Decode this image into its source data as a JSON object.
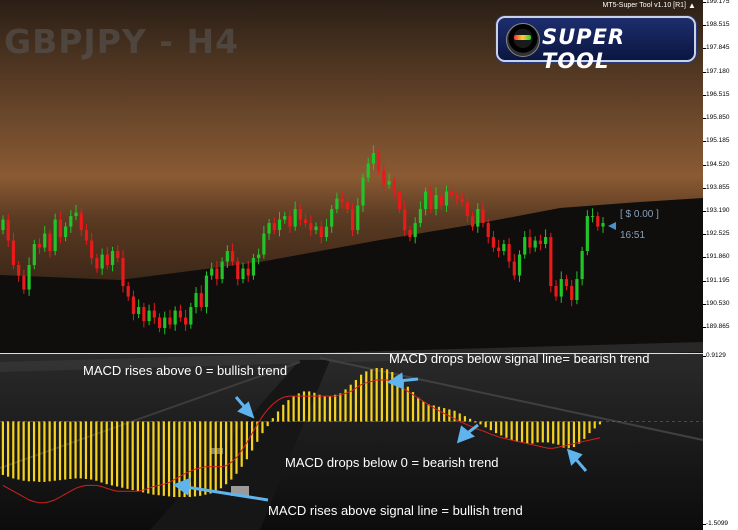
{
  "header": {
    "symbol": "GBPJPY - H4",
    "tool_title": "MT5-Super Tool v1.10 [R1]",
    "logo_text": "SUPER TOOL",
    "position_label": "[ $ 0.00 ]",
    "timer": "16:51"
  },
  "annotations": {
    "macd_above_zero": "MACD rises above 0 = bullish trend",
    "macd_below_signal": "MACD drops below signal line= bearish trend",
    "macd_below_zero": "MACD drops below 0 = bearish trend",
    "macd_above_signal": "MACD rises above signal line = bullish trend"
  },
  "colors": {
    "bull": "#22c42a",
    "bear": "#e81a1a",
    "histogram": "#f5d21c",
    "signal": "#d42020",
    "arrow": "#5fb4ee"
  },
  "chart_data": [
    {
      "type": "candlestick",
      "title": "GBPJPY - H4",
      "ylim": [
        189.515,
        199.175
      ],
      "y_ticks": [
        "199.175",
        "198.515",
        "197.845",
        "197.180",
        "196.515",
        "195.850",
        "195.185",
        "194.520",
        "193.855",
        "193.190",
        "192.525",
        "191.860",
        "191.195",
        "190.530",
        "189.865"
      ],
      "close": [
        192.9,
        192.3,
        191.6,
        191.3,
        190.9,
        191.6,
        192.2,
        192.1,
        192.5,
        192.0,
        192.9,
        192.4,
        192.7,
        193.0,
        193.1,
        192.6,
        192.3,
        191.8,
        191.5,
        191.9,
        191.6,
        192.0,
        191.8,
        191.0,
        190.7,
        190.2,
        190.4,
        190.0,
        190.3,
        190.1,
        189.8,
        190.1,
        189.9,
        190.3,
        190.1,
        189.9,
        190.4,
        190.8,
        190.4,
        191.3,
        191.5,
        191.2,
        191.7,
        192.0,
        191.7,
        191.2,
        191.5,
        191.3,
        191.8,
        191.9,
        192.5,
        192.8,
        192.6,
        192.9,
        193.0,
        192.7,
        193.2,
        192.9,
        192.8,
        192.6,
        192.7,
        192.4,
        192.7,
        193.2,
        193.5,
        193.4,
        193.2,
        192.6,
        193.3,
        194.1,
        194.5,
        194.8,
        194.3,
        193.9,
        194.0,
        193.7,
        193.2,
        192.6,
        192.4,
        192.8,
        193.2,
        193.7,
        193.2,
        193.6,
        193.3,
        193.7,
        193.6,
        193.5,
        193.4,
        193.0,
        192.7,
        193.2,
        192.8,
        192.4,
        192.1,
        192.0,
        192.2,
        191.7,
        191.3,
        191.9,
        192.4,
        192.1,
        192.3,
        192.2,
        192.4,
        191.0,
        190.7,
        191.2,
        191.0,
        190.6,
        191.2,
        192.0,
        193.0,
        193.0,
        192.7,
        192.8
      ],
      "open": [
        192.6,
        192.9,
        192.3,
        191.6,
        191.3,
        190.9,
        191.6,
        192.2,
        192.1,
        192.5,
        192.0,
        192.9,
        192.4,
        192.7,
        193.0,
        193.1,
        192.6,
        192.3,
        191.8,
        191.5,
        191.9,
        191.6,
        192.0,
        191.8,
        191.0,
        190.7,
        190.2,
        190.4,
        190.0,
        190.3,
        190.1,
        189.8,
        190.1,
        189.9,
        190.3,
        190.1,
        189.9,
        190.4,
        190.8,
        190.4,
        191.3,
        191.5,
        191.2,
        191.7,
        192.0,
        191.7,
        191.2,
        191.5,
        191.3,
        191.8,
        191.9,
        192.5,
        192.8,
        192.6,
        192.9,
        193.0,
        192.7,
        193.2,
        192.9,
        192.8,
        192.6,
        192.7,
        192.4,
        192.7,
        193.2,
        193.5,
        193.4,
        193.2,
        192.6,
        193.3,
        194.1,
        194.5,
        194.8,
        194.3,
        193.9,
        194.0,
        193.7,
        193.2,
        192.6,
        192.4,
        192.8,
        193.2,
        193.7,
        193.2,
        193.6,
        193.3,
        193.7,
        193.6,
        193.5,
        193.4,
        193.0,
        192.7,
        193.2,
        192.8,
        192.4,
        192.1,
        192.0,
        192.2,
        191.7,
        191.3,
        191.9,
        192.4,
        192.1,
        192.3,
        192.2,
        192.4,
        191.0,
        190.7,
        191.2,
        191.0,
        190.6,
        191.2,
        192.0,
        193.0,
        193.0,
        192.7
      ]
    },
    {
      "type": "bar",
      "title": "MACD",
      "ylim": [
        -1.5099,
        0.9129
      ],
      "y_ticks": [
        "0.9129",
        "-1.5099"
      ],
      "histogram": [
        -0.92,
        -0.95,
        -0.98,
        -1.0,
        -1.02,
        -1.03,
        -1.03,
        -1.04,
        -1.04,
        -1.03,
        -1.02,
        -1.01,
        -1.0,
        -0.99,
        -0.98,
        -0.98,
        -0.99,
        -1.0,
        -1.02,
        -1.05,
        -1.08,
        -1.1,
        -1.12,
        -1.14,
        -1.16,
        -1.18,
        -1.2,
        -1.22,
        -1.24,
        -1.26,
        -1.27,
        -1.28,
        -1.29,
        -1.3,
        -1.3,
        -1.3,
        -1.3,
        -1.29,
        -1.28,
        -1.26,
        -1.24,
        -1.2,
        -1.15,
        -1.08,
        -1.0,
        -0.9,
        -0.78,
        -0.65,
        -0.5,
        -0.35,
        -0.2,
        -0.08,
        0.05,
        0.15,
        0.25,
        0.32,
        0.38,
        0.42,
        0.45,
        0.45,
        0.43,
        0.4,
        0.38,
        0.38,
        0.4,
        0.42,
        0.48,
        0.55,
        0.62,
        0.7,
        0.75,
        0.78,
        0.8,
        0.8,
        0.78,
        0.74,
        0.68,
        0.6,
        0.52,
        0.44,
        0.36,
        0.3,
        0.26,
        0.24,
        0.22,
        0.2,
        0.18,
        0.16,
        0.12,
        0.08,
        0.04,
        0.0,
        -0.05,
        -0.1,
        -0.15,
        -0.2,
        -0.24,
        -0.28,
        -0.32,
        -0.35,
        -0.36,
        -0.38,
        -0.38,
        -0.36,
        -0.36,
        -0.36,
        -0.38,
        -0.4,
        -0.45,
        -0.46,
        -0.44,
        -0.38,
        -0.3,
        -0.2,
        -0.12,
        -0.05
      ],
      "signal": [
        -1.1,
        -1.15,
        -1.2,
        -1.25,
        -1.3,
        -1.35,
        -1.38,
        -1.4,
        -1.4,
        -1.38,
        -1.35,
        -1.3,
        -1.25,
        -1.2,
        -1.15,
        -1.12,
        -1.1,
        -1.1,
        -1.1,
        -1.12,
        -1.15,
        -1.18,
        -1.2,
        -1.2,
        -1.2,
        -1.2,
        -1.2,
        -1.18,
        -1.15,
        -1.12,
        -1.1,
        -1.08,
        -1.05,
        -1.0,
        -0.95,
        -0.9,
        -0.86,
        -0.82,
        -0.8,
        -0.78,
        -0.78,
        -0.78,
        -0.78,
        -0.76,
        -0.7,
        -0.62,
        -0.5,
        -0.36,
        -0.2,
        -0.05,
        0.08,
        0.18,
        0.26,
        0.32,
        0.36,
        0.38,
        0.38,
        0.38,
        0.38,
        0.38,
        0.38,
        0.38,
        0.38,
        0.38,
        0.38,
        0.4,
        0.42,
        0.45,
        0.5,
        0.55,
        0.58,
        0.6,
        0.62,
        0.62,
        0.62,
        0.6,
        0.56,
        0.5,
        0.45,
        0.4,
        0.35,
        0.3,
        0.25,
        0.2,
        0.16,
        0.12,
        0.08,
        0.04,
        0.0,
        -0.04,
        -0.08,
        -0.12,
        -0.15,
        -0.18,
        -0.22,
        -0.25,
        -0.28,
        -0.3,
        -0.32,
        -0.34,
        -0.36,
        -0.38,
        -0.4,
        -0.42,
        -0.44,
        -0.46,
        -0.46,
        -0.44,
        -0.42,
        -0.4,
        -0.38,
        -0.36,
        -0.34,
        -0.32,
        -0.3,
        -0.28
      ]
    }
  ]
}
